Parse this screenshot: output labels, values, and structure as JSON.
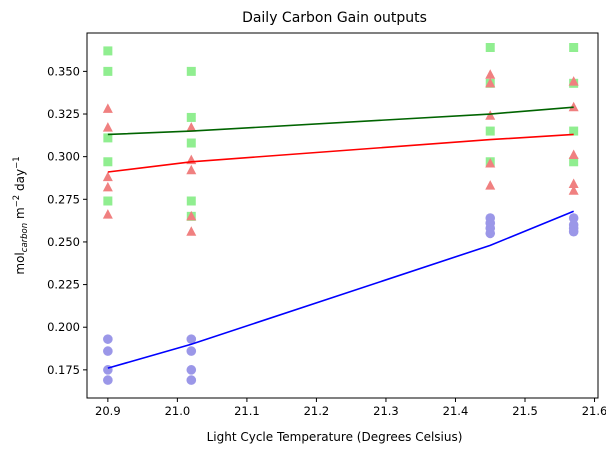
{
  "chart_data": {
    "type": "scatter",
    "title": "Daily Carbon Gain outputs",
    "xlabel": "Light Cycle Temperature (Degrees Celsius)",
    "ylabel": {
      "base": "mol",
      "sub": "carbon",
      "mid": " m",
      "sup1": "−2",
      "tail": " day",
      "sup2": "−1"
    },
    "xlim": [
      20.87,
      21.605
    ],
    "ylim": [
      0.1585,
      0.3725
    ],
    "xticks": [
      20.9,
      21.0,
      21.1,
      21.2,
      21.3,
      21.4,
      21.5,
      21.6
    ],
    "yticks": [
      0.175,
      0.2,
      0.225,
      0.25,
      0.275,
      0.3,
      0.325,
      0.35
    ],
    "grid": false,
    "series": [
      {
        "marker": "square",
        "color": "#90ee90",
        "points": [
          [
            20.9,
            0.362
          ],
          [
            20.9,
            0.35
          ],
          [
            20.9,
            0.311
          ],
          [
            20.9,
            0.297
          ],
          [
            20.9,
            0.274
          ],
          [
            21.02,
            0.35
          ],
          [
            21.02,
            0.323
          ],
          [
            21.02,
            0.308
          ],
          [
            21.02,
            0.274
          ],
          [
            21.02,
            0.265
          ],
          [
            21.45,
            0.364
          ],
          [
            21.45,
            0.343
          ],
          [
            21.45,
            0.315
          ],
          [
            21.45,
            0.297
          ],
          [
            21.57,
            0.364
          ],
          [
            21.57,
            0.343
          ],
          [
            21.57,
            0.315
          ],
          [
            21.57,
            0.297
          ]
        ],
        "fit": {
          "color": "#006400",
          "points": [
            [
              20.9,
              0.313
            ],
            [
              21.02,
              0.315
            ],
            [
              21.45,
              0.325
            ],
            [
              21.57,
              0.329
            ]
          ]
        }
      },
      {
        "marker": "triangle",
        "color": "#f08080",
        "points": [
          [
            20.9,
            0.328
          ],
          [
            20.9,
            0.317
          ],
          [
            20.9,
            0.288
          ],
          [
            20.9,
            0.282
          ],
          [
            20.9,
            0.266
          ],
          [
            21.02,
            0.317
          ],
          [
            21.02,
            0.298
          ],
          [
            21.02,
            0.292
          ],
          [
            21.02,
            0.265
          ],
          [
            21.02,
            0.256
          ],
          [
            21.45,
            0.348
          ],
          [
            21.45,
            0.343
          ],
          [
            21.45,
            0.324
          ],
          [
            21.45,
            0.296
          ],
          [
            21.45,
            0.283
          ],
          [
            21.57,
            0.344
          ],
          [
            21.57,
            0.329
          ],
          [
            21.57,
            0.301
          ],
          [
            21.57,
            0.284
          ],
          [
            21.57,
            0.28
          ]
        ],
        "fit": {
          "color": "#ff0000",
          "points": [
            [
              20.9,
              0.291
            ],
            [
              21.02,
              0.297
            ],
            [
              21.45,
              0.31
            ],
            [
              21.57,
              0.313
            ]
          ]
        }
      },
      {
        "marker": "circle",
        "color": "#9b97e8",
        "points": [
          [
            20.9,
            0.193
          ],
          [
            20.9,
            0.186
          ],
          [
            20.9,
            0.175
          ],
          [
            20.9,
            0.169
          ],
          [
            21.02,
            0.193
          ],
          [
            21.02,
            0.186
          ],
          [
            21.02,
            0.175
          ],
          [
            21.02,
            0.169
          ],
          [
            21.45,
            0.264
          ],
          [
            21.45,
            0.261
          ],
          [
            21.45,
            0.258
          ],
          [
            21.45,
            0.255
          ],
          [
            21.57,
            0.264
          ],
          [
            21.57,
            0.26
          ],
          [
            21.57,
            0.258
          ],
          [
            21.57,
            0.256
          ]
        ],
        "fit": {
          "color": "#0000ff",
          "points": [
            [
              20.9,
              0.176
            ],
            [
              21.02,
              0.19
            ],
            [
              21.45,
              0.248
            ],
            [
              21.57,
              0.268
            ]
          ]
        }
      }
    ]
  }
}
